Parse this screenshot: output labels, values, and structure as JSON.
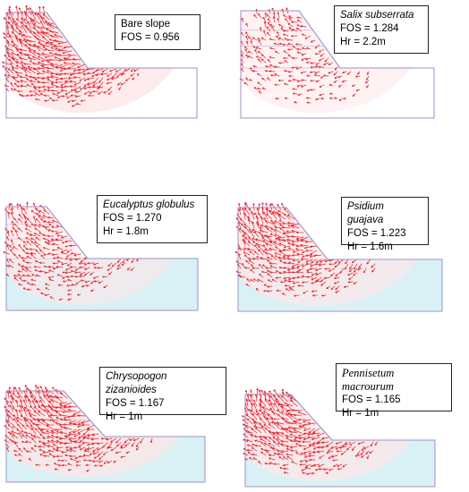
{
  "colors": {
    "arrow": "#e8202a",
    "outline": "#9c8fd0",
    "water": "#d9f1f4",
    "fill_faint": "#fde6e7"
  },
  "panels": [
    {
      "id": "bare",
      "title": "Bare slope",
      "fos": "FOS = 0.956",
      "hr": "",
      "italic": false,
      "water": false,
      "density": 1.0
    },
    {
      "id": "salix",
      "title": "Salix subserrata",
      "fos": "FOS = 1.284",
      "hr": "Hr = 2.2m",
      "italic": true,
      "water": false,
      "density": 0.35
    },
    {
      "id": "eucalyptus",
      "title": "Eucalyptus globulus",
      "fos": "FOS = 1.270",
      "hr": "Hr = 1.8m",
      "italic": true,
      "water": true,
      "density": 0.55
    },
    {
      "id": "psidium",
      "title": "Psidium guajava",
      "fos": "FOS = 1.223",
      "hr": "Hr = 1.6m",
      "italic": true,
      "water": true,
      "density": 0.75
    },
    {
      "id": "chrysopogon",
      "title": "Chrysopogon zizanioides",
      "fos": "FOS = 1.167",
      "hr": "Hr = 1m",
      "italic": true,
      "water": true,
      "density": 0.85
    },
    {
      "id": "pennisetum",
      "title": "Pennisetum macrourum",
      "fos": "FOS = 1.165",
      "hr": "Hr = 1m",
      "italic": true,
      "water": true,
      "density": 0.9
    }
  ]
}
